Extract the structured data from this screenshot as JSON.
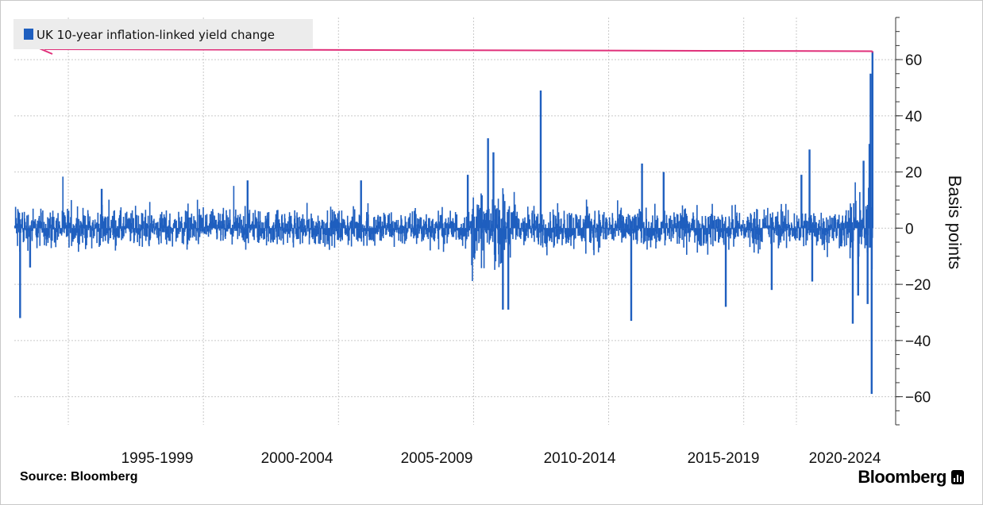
{
  "chart_data": {
    "type": "bar",
    "legend": "UK 10-year inflation-linked yield change",
    "legend_position": "top-left",
    "ylabel": "Basis points",
    "y_axis_side": "right",
    "ylim": [
      -70,
      75
    ],
    "yticks": [
      -60,
      -40,
      -20,
      0,
      20,
      40,
      60
    ],
    "grid": true,
    "series_color": "#1f5fbf",
    "annotation_color": "#e0307a",
    "x_range": [
      "1991-01",
      "2022-09"
    ],
    "xtick_labels": [
      "1995-1999",
      "2000-2004",
      "2005-2009",
      "2010-2014",
      "2015-2019",
      "2020-2024"
    ],
    "volatility_regimes": [
      {
        "start": 1991.0,
        "end": 1991.3,
        "typical": 7
      },
      {
        "start": 1991.3,
        "end": 1993.0,
        "typical": 5
      },
      {
        "start": 1993.0,
        "end": 2007.9,
        "typical": 4.5
      },
      {
        "start": 2007.9,
        "end": 2009.6,
        "typical": 9
      },
      {
        "start": 2009.6,
        "end": 2021.9,
        "typical": 5
      },
      {
        "start": 2021.9,
        "end": 2022.75,
        "typical": 9
      }
    ],
    "spikes": [
      {
        "date": 1991.18,
        "value": -32
      },
      {
        "date": 1991.55,
        "value": -14
      },
      {
        "date": 1994.2,
        "value": 14
      },
      {
        "date": 1999.6,
        "value": 17
      },
      {
        "date": 2003.8,
        "value": 17
      },
      {
        "date": 2007.75,
        "value": 19
      },
      {
        "date": 2008.5,
        "value": 32
      },
      {
        "date": 2008.7,
        "value": 27
      },
      {
        "date": 2009.05,
        "value": -29
      },
      {
        "date": 2009.25,
        "value": -29
      },
      {
        "date": 2010.45,
        "value": 49
      },
      {
        "date": 2013.8,
        "value": -33
      },
      {
        "date": 2014.2,
        "value": 23
      },
      {
        "date": 2015.0,
        "value": 20
      },
      {
        "date": 2017.3,
        "value": -28
      },
      {
        "date": 2019.0,
        "value": -22
      },
      {
        "date": 2020.1,
        "value": 19
      },
      {
        "date": 2020.4,
        "value": 28
      },
      {
        "date": 2020.5,
        "value": -19
      },
      {
        "date": 2022.0,
        "value": -34
      },
      {
        "date": 2022.2,
        "value": -24
      },
      {
        "date": 2022.4,
        "value": 24
      },
      {
        "date": 2022.55,
        "value": -27
      },
      {
        "date": 2022.62,
        "value": 30
      },
      {
        "date": 2022.66,
        "value": 55
      },
      {
        "date": 2022.7,
        "value": -59
      },
      {
        "date": 2022.73,
        "value": 63
      }
    ],
    "annotation": {
      "type": "arrow",
      "from_value": 63,
      "direction": "left",
      "description_hidden": true
    }
  },
  "footer": {
    "source": "Source:  Bloomberg",
    "brand": "Bloomberg"
  }
}
